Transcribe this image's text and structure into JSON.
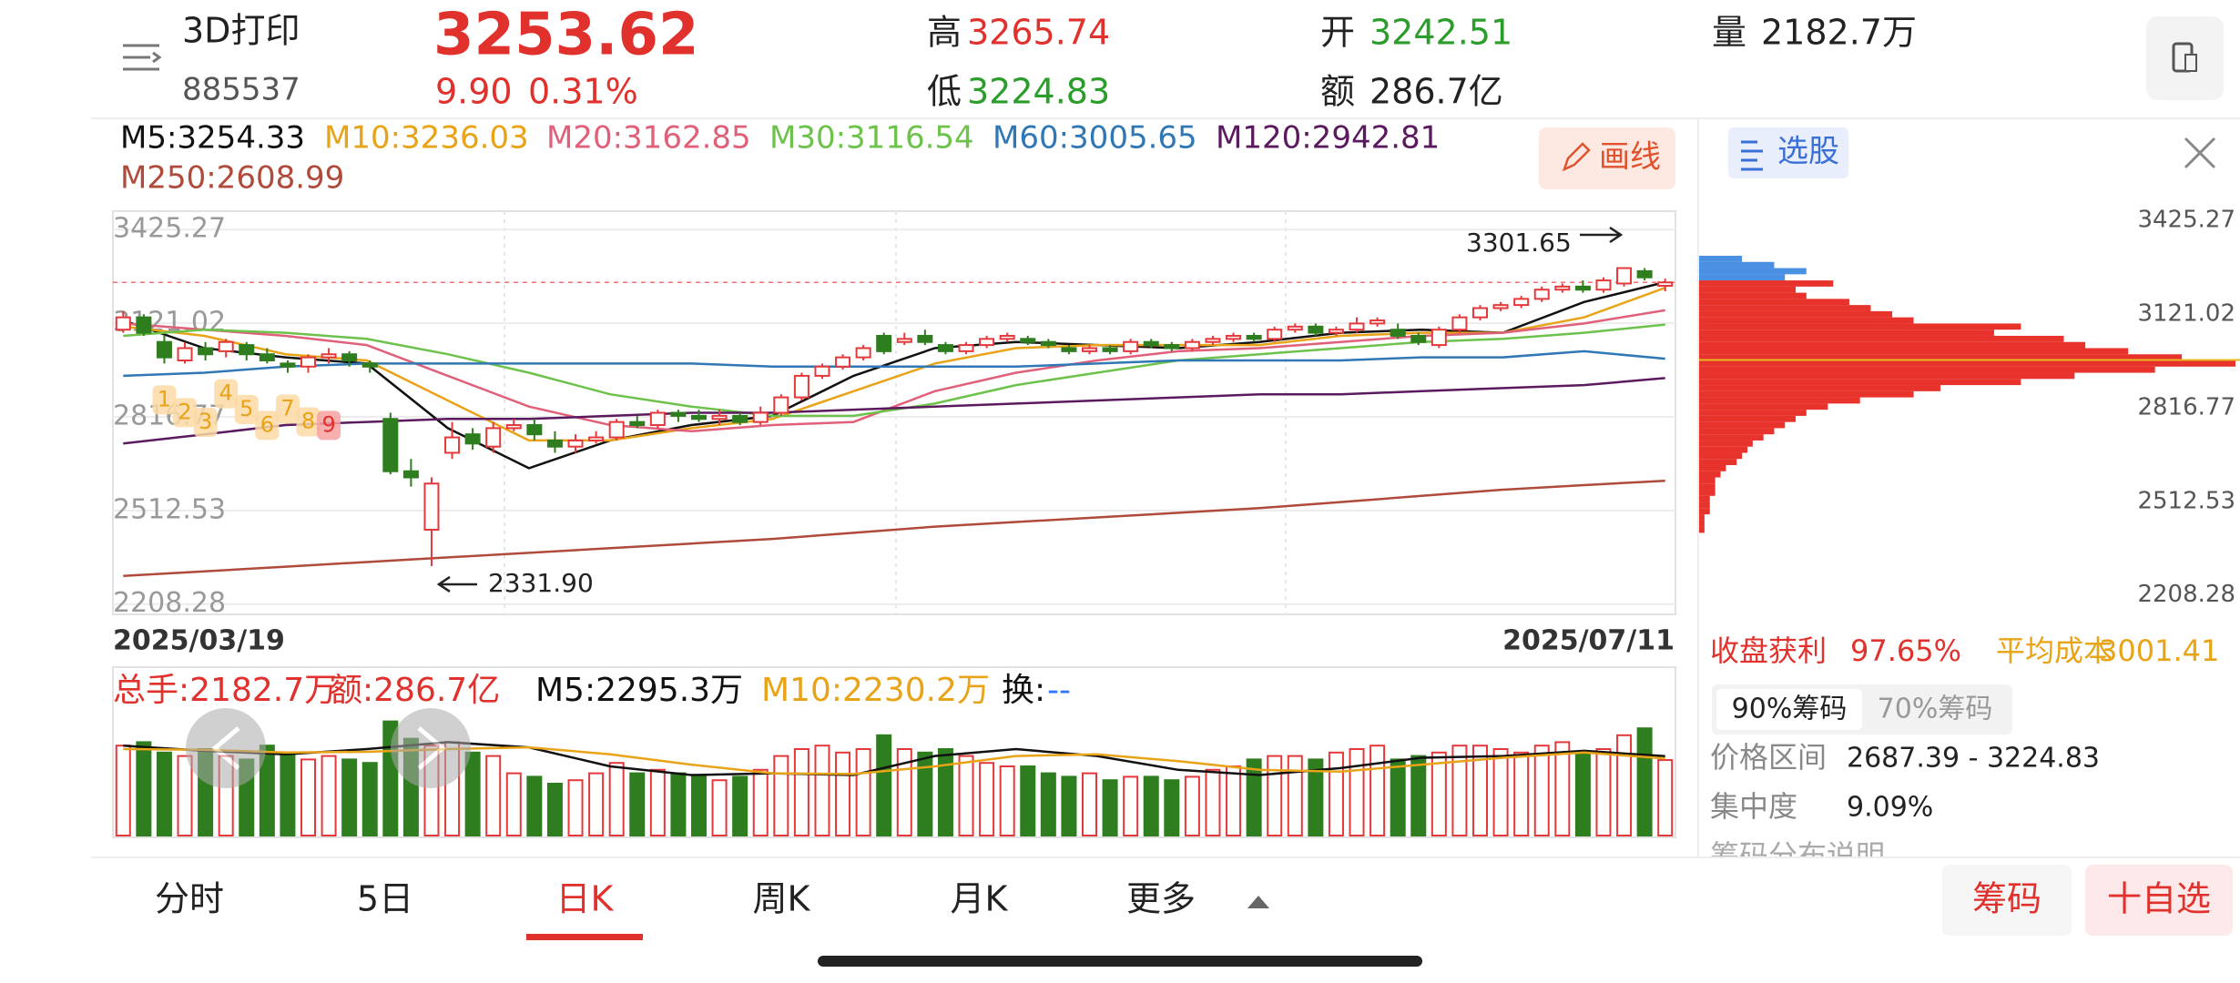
{
  "header": {
    "name": "3D打印",
    "code": "885537",
    "price": "3253.62",
    "change": "9.90",
    "change_pct": "0.31%",
    "high_label": "高",
    "high": "3265.74",
    "low_label": "低",
    "low": "3224.83",
    "open_label": "开",
    "open": "3242.51",
    "amount_label": "额",
    "amount": "286.7亿",
    "volume_label": "量",
    "volume": "2182.7万"
  },
  "draw_button": "画线",
  "chart_data": {
    "type": "candlestick",
    "categories": [
      "2025/03/19",
      null,
      null,
      null,
      null,
      null,
      null,
      null,
      null,
      null,
      null,
      null,
      null,
      null,
      null,
      null,
      null,
      null,
      null,
      null,
      null,
      null,
      null,
      null,
      null,
      null,
      null,
      null,
      null,
      null,
      null,
      null,
      null,
      null,
      null,
      null,
      null,
      null,
      null,
      null,
      null,
      null,
      null,
      null,
      null,
      null,
      null,
      null,
      null,
      null,
      null,
      null,
      null,
      null,
      null,
      null,
      null,
      null,
      null,
      null,
      null,
      null,
      null,
      null,
      null,
      null,
      null,
      null,
      null,
      null,
      null,
      null,
      null,
      null,
      null,
      "2025/07/11"
    ],
    "open": [
      3100,
      3140,
      3060,
      3000,
      3040,
      3030,
      3050,
      3020,
      2990,
      2980,
      3010,
      3020,
      2990,
      2810,
      2640,
      2450,
      2700,
      2760,
      2720,
      2780,
      2790,
      2740,
      2720,
      2740,
      2750,
      2800,
      2790,
      2830,
      2820,
      2810,
      2820,
      2800,
      2830,
      2880,
      2950,
      2980,
      3010,
      3080,
      3060,
      3080,
      3050,
      3030,
      3050,
      3070,
      3070,
      3060,
      3040,
      3030,
      3040,
      3030,
      3060,
      3050,
      3040,
      3060,
      3070,
      3080,
      3070,
      3100,
      3110,
      3090,
      3100,
      3120,
      3100,
      3080,
      3050,
      3100,
      3140,
      3170,
      3180,
      3200,
      3230,
      3240,
      3230,
      3250,
      3290,
      3242.51
    ],
    "close": [
      3140,
      3090,
      3010,
      3040,
      3020,
      3060,
      3020,
      3000,
      2980,
      3010,
      3020,
      3000,
      2980,
      2640,
      2620,
      2600,
      2750,
      2730,
      2780,
      2790,
      2760,
      2720,
      2740,
      2750,
      2800,
      2790,
      2830,
      2820,
      2810,
      2820,
      2800,
      2830,
      2880,
      2950,
      2980,
      3010,
      3040,
      3030,
      3070,
      3060,
      3030,
      3050,
      3070,
      3080,
      3060,
      3050,
      3030,
      3040,
      3030,
      3060,
      3050,
      3040,
      3060,
      3070,
      3080,
      3070,
      3100,
      3110,
      3090,
      3100,
      3120,
      3130,
      3080,
      3060,
      3100,
      3140,
      3170,
      3180,
      3200,
      3230,
      3240,
      3230,
      3260,
      3300,
      3270,
      3253.62
    ],
    "high": [
      3160,
      3150,
      3080,
      3060,
      3060,
      3070,
      3060,
      3040,
      3000,
      3020,
      3040,
      3030,
      3000,
      2830,
      2680,
      2620,
      2800,
      2780,
      2800,
      2810,
      2810,
      2770,
      2760,
      2770,
      2810,
      2820,
      2840,
      2840,
      2840,
      2840,
      2830,
      2850,
      2890,
      2960,
      2990,
      3020,
      3050,
      3090,
      3090,
      3100,
      3060,
      3060,
      3080,
      3090,
      3080,
      3070,
      3050,
      3050,
      3050,
      3070,
      3070,
      3060,
      3070,
      3080,
      3090,
      3090,
      3110,
      3120,
      3120,
      3110,
      3140,
      3140,
      3120,
      3090,
      3110,
      3150,
      3180,
      3190,
      3210,
      3240,
      3250,
      3260,
      3270,
      3301.65,
      3300,
      3265.74
    ],
    "low": [
      3090,
      3080,
      2990,
      2990,
      3000,
      3010,
      3000,
      2990,
      2960,
      2960,
      2990,
      2980,
      2960,
      2630,
      2590,
      2331.9,
      2680,
      2710,
      2700,
      2770,
      2740,
      2700,
      2700,
      2730,
      2740,
      2780,
      2780,
      2800,
      2800,
      2790,
      2790,
      2790,
      2820,
      2870,
      2940,
      2970,
      3000,
      3020,
      3050,
      3050,
      3020,
      3020,
      3040,
      3060,
      3050,
      3040,
      3020,
      3020,
      3020,
      3020,
      3040,
      3030,
      3030,
      3050,
      3060,
      3060,
      3060,
      3090,
      3080,
      3080,
      3090,
      3110,
      3070,
      3050,
      3040,
      3090,
      3130,
      3160,
      3170,
      3190,
      3220,
      3220,
      3220,
      3240,
      3260,
      3224.83
    ],
    "up_color": "#e5383b",
    "down_color": "#2e7d1e",
    "ylim": [
      2175,
      3485
    ],
    "yticks": [
      3425.27,
      3121.02,
      2816.77,
      2512.53,
      2208.28
    ],
    "ma": [
      {
        "name": "M5",
        "label": "M5:3254.33",
        "color": "#111111",
        "values": [
          3130,
          3040,
          3010,
          2990,
          2780,
          2650,
          2740,
          2790,
          2820,
          2950,
          3040,
          3060,
          3050,
          3040,
          3060,
          3090,
          3100,
          3090,
          3190,
          3254.33
        ]
      },
      {
        "name": "M10",
        "label": "M10:3236.03",
        "color": "#e8a317",
        "values": [
          3110,
          3080,
          3020,
          3000,
          2870,
          2740,
          2740,
          2780,
          2810,
          2900,
          2990,
          3040,
          3050,
          3050,
          3050,
          3080,
          3090,
          3090,
          3140,
          3236.03
        ]
      },
      {
        "name": "M20",
        "label": "M20:3162.85",
        "color": "#e0607a",
        "values": [
          3120,
          3100,
          3080,
          3050,
          2950,
          2850,
          2790,
          2770,
          2790,
          2800,
          2900,
          2960,
          3000,
          3030,
          3040,
          3060,
          3080,
          3090,
          3120,
          3162.85
        ]
      },
      {
        "name": "M30",
        "label": "M30:3116.54",
        "color": "#6cc24a",
        "values": [
          3080,
          3100,
          3090,
          3070,
          3020,
          2960,
          2890,
          2850,
          2820,
          2820,
          2860,
          2920,
          2960,
          3000,
          3020,
          3040,
          3060,
          3070,
          3090,
          3116.54
        ]
      },
      {
        "name": "M60",
        "label": "M60:3005.65",
        "color": "#2f77b5",
        "values": [
          2950,
          2960,
          2980,
          2990,
          2990,
          2990,
          2990,
          2990,
          2980,
          2980,
          2980,
          2980,
          2990,
          3000,
          3000,
          3000,
          3010,
          3010,
          3030,
          3005.65
        ]
      },
      {
        "name": "M120",
        "label": "M120:2942.81",
        "color": "#5b1a5e",
        "values": [
          2730,
          2760,
          2790,
          2800,
          2810,
          2810,
          2820,
          2830,
          2830,
          2840,
          2850,
          2860,
          2870,
          2880,
          2890,
          2890,
          2900,
          2910,
          2920,
          2942.81
        ]
      },
      {
        "name": "M250",
        "label": "M250:2608.99",
        "color": "#b04a3a",
        "values": [
          2300,
          2315,
          2330,
          2345,
          2360,
          2375,
          2390,
          2405,
          2420,
          2440,
          2460,
          2475,
          2490,
          2505,
          2520,
          2540,
          2560,
          2580,
          2595,
          2608.99
        ]
      }
    ],
    "annotations": {
      "high": "3301.65",
      "low": "2331.90"
    },
    "nine_count": [
      "1",
      "2",
      "3",
      "4",
      "5",
      "6",
      "7",
      "8",
      "9"
    ],
    "volume": {
      "values": [
        2600,
        2700,
        2400,
        2300,
        2500,
        2300,
        2200,
        2600,
        2400,
        2200,
        2300,
        2200,
        2100,
        3300,
        2800,
        2600,
        2700,
        2400,
        2300,
        1800,
        1700,
        1500,
        1600,
        1800,
        2100,
        1800,
        1900,
        1800,
        1700,
        1600,
        1700,
        1900,
        2300,
        2500,
        2600,
        2400,
        2500,
        2900,
        2500,
        2400,
        2500,
        2300,
        2100,
        2000,
        2000,
        1800,
        1700,
        1800,
        1600,
        1700,
        1700,
        1600,
        1700,
        1900,
        2000,
        2200,
        2300,
        2300,
        2200,
        2400,
        2500,
        2600,
        2200,
        2300,
        2400,
        2600,
        2600,
        2500,
        2400,
        2600,
        2700,
        2400,
        2500,
        2900,
        3100,
        2182.7
      ],
      "ylim": [
        0,
        3500
      ],
      "ma": [
        {
          "name": "M5",
          "color": "#111111",
          "values": [
            2600,
            2450,
            2350,
            2500,
            2700,
            2550,
            2000,
            1750,
            1800,
            1750,
            2300,
            2500,
            2300,
            1900,
            1750,
            1950,
            2250,
            2300,
            2450,
            2295.3
          ]
        },
        {
          "name": "M10",
          "color": "#e8a317",
          "values": [
            2500,
            2480,
            2400,
            2420,
            2500,
            2550,
            2350,
            2050,
            1800,
            1780,
            2000,
            2300,
            2350,
            2150,
            1900,
            1850,
            2050,
            2250,
            2400,
            2230.2
          ]
        }
      ],
      "legend": {
        "total": "总手:2182.7万",
        "amount": "额:286.7亿",
        "m5": "M5:2295.3万",
        "m10": "M10:2230.2万",
        "turnover_label": "换:",
        "turnover": "--"
      }
    },
    "chips": {
      "xlim": [
        0,
        100
      ],
      "above_color": "#4a90e2",
      "below_color": "#e8332d",
      "avg_color": "#e8b923",
      "levels": [
        3330,
        3310,
        3290,
        3270,
        3250,
        3230,
        3210,
        3190,
        3170,
        3150,
        3130,
        3110,
        3090,
        3070,
        3050,
        3030,
        3010,
        2990,
        2970,
        2950,
        2930,
        2910,
        2890,
        2870,
        2850,
        2830,
        2810,
        2790,
        2770,
        2750,
        2730,
        2710,
        2690,
        2670,
        2650,
        2630,
        2610,
        2590,
        2570,
        2550,
        2530,
        2510,
        2490,
        2470,
        2450
      ],
      "amounts": [
        8,
        14,
        20,
        16,
        25,
        18,
        20,
        28,
        32,
        36,
        40,
        60,
        55,
        68,
        72,
        80,
        90,
        100,
        85,
        70,
        60,
        45,
        40,
        30,
        24,
        20,
        18,
        16,
        14,
        12,
        10,
        9,
        8,
        7,
        5,
        4,
        3,
        3,
        3,
        2,
        2,
        2,
        1,
        1,
        1
      ]
    }
  },
  "chip_panel": {
    "select_button": "选股",
    "profit_label": "收盘获利",
    "profit": "97.65%",
    "avg_label": "平均成本",
    "avg_cost": 3001.41,
    "tab_90": "90%筹码",
    "tab_70": "70%筹码",
    "range_label": "价格区间",
    "range": "2687.39 - 3224.83",
    "concentration_label": "集中度",
    "concentration": "9.09%",
    "help": "筹码分布说明"
  },
  "tabs": [
    "分时",
    "5日",
    "日K",
    "周K",
    "月K",
    "更多"
  ],
  "buttons": {
    "chips": "筹码",
    "watchlist": "十自选"
  }
}
